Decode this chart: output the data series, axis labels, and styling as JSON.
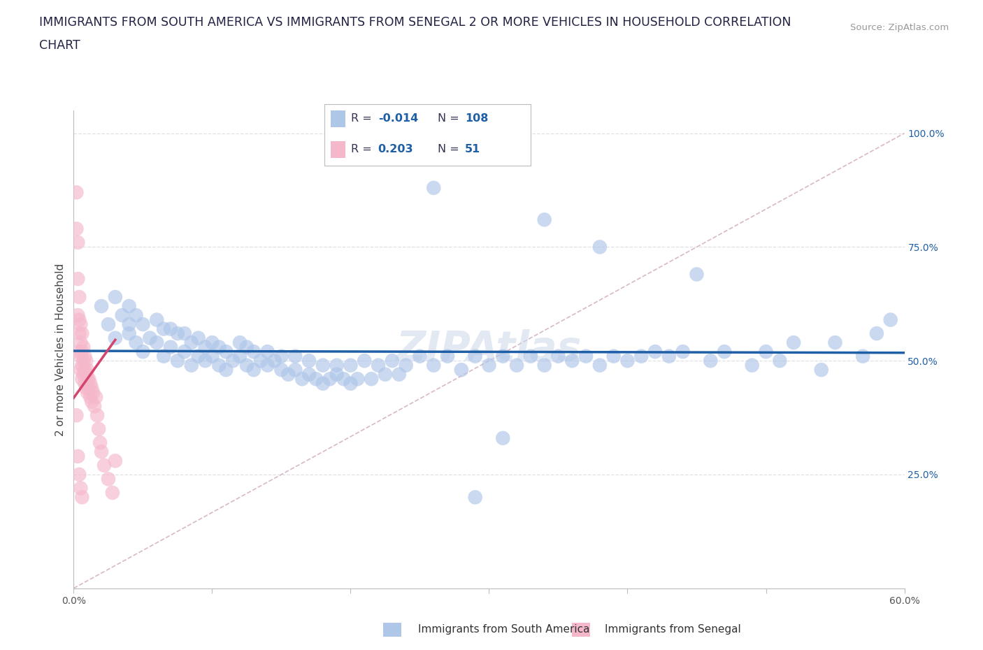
{
  "title_line1": "IMMIGRANTS FROM SOUTH AMERICA VS IMMIGRANTS FROM SENEGAL 2 OR MORE VEHICLES IN HOUSEHOLD CORRELATION",
  "title_line2": "CHART",
  "source": "Source: ZipAtlas.com",
  "ylabel": "2 or more Vehicles in Household",
  "xlim": [
    0.0,
    0.6
  ],
  "ylim": [
    0.0,
    1.05
  ],
  "xticks": [
    0.0,
    0.1,
    0.2,
    0.3,
    0.4,
    0.5,
    0.6
  ],
  "xticklabels": [
    "0.0%",
    "",
    "",
    "",
    "",
    "",
    "60.0%"
  ],
  "ytick_positions": [
    0.0,
    0.25,
    0.5,
    0.75,
    1.0
  ],
  "yticklabels_right": [
    "",
    "25.0%",
    "50.0%",
    "75.0%",
    "100.0%"
  ],
  "R_blue": -0.014,
  "N_blue": 108,
  "R_pink": 0.203,
  "N_pink": 51,
  "blue_color": "#aec6e8",
  "pink_color": "#f5b8cb",
  "blue_line_color": "#1f5fa6",
  "pink_line_color": "#d4456e",
  "legend_blue_color": "#aec6e8",
  "legend_pink_color": "#f5b8cb",
  "watermark": "ZIPAtlas",
  "blue_scatter_x": [
    0.02,
    0.025,
    0.03,
    0.03,
    0.035,
    0.04,
    0.04,
    0.04,
    0.045,
    0.045,
    0.05,
    0.05,
    0.055,
    0.06,
    0.06,
    0.065,
    0.065,
    0.07,
    0.07,
    0.075,
    0.075,
    0.08,
    0.08,
    0.085,
    0.085,
    0.09,
    0.09,
    0.095,
    0.095,
    0.1,
    0.1,
    0.105,
    0.105,
    0.11,
    0.11,
    0.115,
    0.12,
    0.12,
    0.125,
    0.125,
    0.13,
    0.13,
    0.135,
    0.14,
    0.14,
    0.145,
    0.15,
    0.15,
    0.155,
    0.16,
    0.16,
    0.165,
    0.17,
    0.17,
    0.175,
    0.18,
    0.18,
    0.185,
    0.19,
    0.19,
    0.195,
    0.2,
    0.2,
    0.205,
    0.21,
    0.215,
    0.22,
    0.225,
    0.23,
    0.235,
    0.24,
    0.25,
    0.26,
    0.27,
    0.28,
    0.29,
    0.3,
    0.31,
    0.32,
    0.33,
    0.34,
    0.35,
    0.36,
    0.37,
    0.38,
    0.39,
    0.4,
    0.41,
    0.42,
    0.43,
    0.44,
    0.46,
    0.47,
    0.49,
    0.5,
    0.51,
    0.52,
    0.54,
    0.55,
    0.57,
    0.58,
    0.59,
    0.45,
    0.34,
    0.26,
    0.38,
    0.29,
    0.31
  ],
  "blue_scatter_y": [
    0.62,
    0.58,
    0.64,
    0.55,
    0.6,
    0.56,
    0.62,
    0.58,
    0.54,
    0.6,
    0.52,
    0.58,
    0.55,
    0.54,
    0.59,
    0.51,
    0.57,
    0.53,
    0.57,
    0.5,
    0.56,
    0.52,
    0.56,
    0.49,
    0.54,
    0.51,
    0.55,
    0.5,
    0.53,
    0.51,
    0.54,
    0.49,
    0.53,
    0.48,
    0.52,
    0.5,
    0.51,
    0.54,
    0.49,
    0.53,
    0.48,
    0.52,
    0.5,
    0.49,
    0.52,
    0.5,
    0.48,
    0.51,
    0.47,
    0.48,
    0.51,
    0.46,
    0.47,
    0.5,
    0.46,
    0.45,
    0.49,
    0.46,
    0.47,
    0.49,
    0.46,
    0.45,
    0.49,
    0.46,
    0.5,
    0.46,
    0.49,
    0.47,
    0.5,
    0.47,
    0.49,
    0.51,
    0.49,
    0.51,
    0.48,
    0.51,
    0.49,
    0.51,
    0.49,
    0.51,
    0.49,
    0.51,
    0.5,
    0.51,
    0.49,
    0.51,
    0.5,
    0.51,
    0.52,
    0.51,
    0.52,
    0.5,
    0.52,
    0.49,
    0.52,
    0.5,
    0.54,
    0.48,
    0.54,
    0.51,
    0.56,
    0.59,
    0.69,
    0.81,
    0.88,
    0.75,
    0.2,
    0.33
  ],
  "pink_scatter_x": [
    0.002,
    0.002,
    0.003,
    0.003,
    0.003,
    0.004,
    0.004,
    0.004,
    0.004,
    0.005,
    0.005,
    0.005,
    0.005,
    0.006,
    0.006,
    0.006,
    0.006,
    0.007,
    0.007,
    0.007,
    0.008,
    0.008,
    0.008,
    0.009,
    0.009,
    0.009,
    0.01,
    0.01,
    0.01,
    0.011,
    0.011,
    0.012,
    0.012,
    0.013,
    0.013,
    0.014,
    0.015,
    0.016,
    0.017,
    0.018,
    0.019,
    0.02,
    0.022,
    0.025,
    0.028,
    0.03,
    0.002,
    0.003,
    0.004,
    0.005,
    0.006
  ],
  "pink_scatter_y": [
    0.87,
    0.79,
    0.6,
    0.76,
    0.68,
    0.59,
    0.64,
    0.56,
    0.52,
    0.58,
    0.54,
    0.51,
    0.48,
    0.56,
    0.52,
    0.49,
    0.46,
    0.53,
    0.5,
    0.47,
    0.51,
    0.48,
    0.45,
    0.5,
    0.47,
    0.44,
    0.48,
    0.46,
    0.43,
    0.46,
    0.44,
    0.45,
    0.42,
    0.44,
    0.41,
    0.43,
    0.4,
    0.42,
    0.38,
    0.35,
    0.32,
    0.3,
    0.27,
    0.24,
    0.21,
    0.28,
    0.38,
    0.29,
    0.25,
    0.22,
    0.2
  ],
  "diag_line_color": "#c8c8d8",
  "grid_color": "#e0e0e8",
  "bg_color": "#ffffff",
  "text_color": "#444466",
  "right_axis_color": "#1f5fa6"
}
